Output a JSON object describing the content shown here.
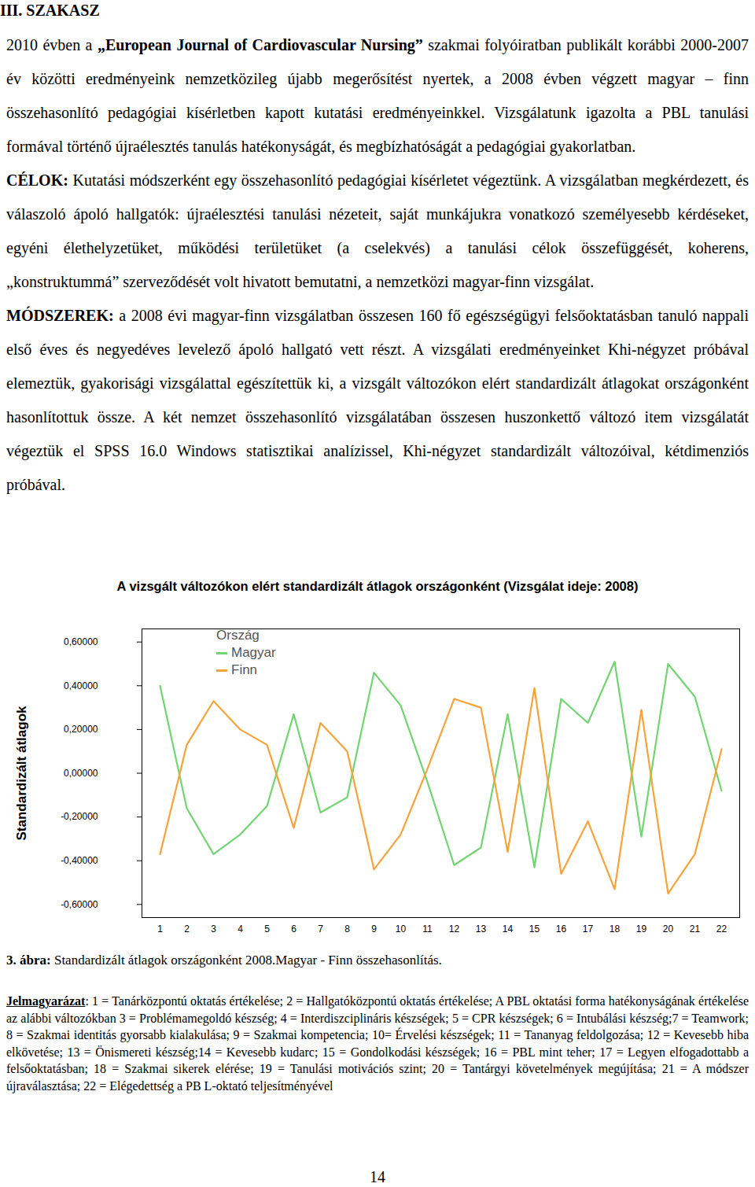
{
  "heading": "III. SZAKASZ",
  "paragraphs": [
    [
      "2010 évben a ",
      {
        "text": "„European Journal of Cardiovascular Nursing”",
        "style": "bold"
      },
      " szakmai folyóiratban publikált korábbi 2000-2007 év közötti eredményeink nemzetközileg újabb megerősítést nyertek, a 2008 évben végzett magyar – finn összehasonlító pedagógiai kísérletben kapott kutatási eredményeinkkel. Vizsgálatunk igazolta a PBL tanulási formával történő újraélesztés tanulás hatékonyságát, és megbízhatóságát a pedagógiai gyakorlatban."
    ],
    [
      {
        "text": "CÉLOK:",
        "style": "bold"
      },
      " Kutatási módszerként egy összehasonlító pedagógiai kísérletet végeztünk. A vizsgálatban megkérdezett, és válaszoló ápoló hallgatók: újraélesztési tanulási nézeteit, saját munkájukra vonatkozó személyesebb kérdéseket, egyéni élethelyzetüket, működési területüket (a cselekvés) a tanulási célok összefüggését, koherens, „konstruktummá” szerveződését volt hivatott bemutatni, a nemzetközi magyar-finn vizsgálat."
    ],
    [
      {
        "text": "MÓDSZEREK:",
        "style": "bold"
      },
      " a 2008 évi magyar-finn vizsgálatban összesen 160 fő egészségügyi felsőoktatásban tanuló nappali első éves és negyedéves levelező ápoló hallgató vett részt. A vizsgálati eredményeinket Khi-négyzet próbával elemeztük, gyakorisági vizsgálattal egészítettük ki, a vizsgált változókon elért standardizált átlagokat országonként hasonlítottuk össze. A két nemzet összehasonlító vizsgálatában összesen huszonkettő változó item vizsgálatát végeztük el SPSS 16.0 Windows statisztikai analízissel, Khi-négyzet standardizált változóival, kétdimenziós próbával."
    ]
  ],
  "chart_data": {
    "type": "line",
    "title": "A vizsgált változókon elért standardizált átlagok országonként (Vizsgálat ideje: 2008)",
    "y_label": "Standardizált átlagok",
    "categories": [
      "1",
      "2",
      "3",
      "4",
      "5",
      "6",
      "7",
      "8",
      "9",
      "10",
      "11",
      "12",
      "13",
      "14",
      "15",
      "16",
      "17",
      "18",
      "19",
      "20",
      "21",
      "22"
    ],
    "series": [
      {
        "name": "Magyar",
        "color": "#72d472",
        "values": [
          0.4,
          -0.16,
          -0.37,
          -0.28,
          -0.15,
          0.27,
          -0.18,
          -0.11,
          0.46,
          0.31,
          -0.04,
          -0.42,
          -0.34,
          0.27,
          -0.43,
          0.34,
          0.23,
          0.51,
          -0.29,
          0.5,
          0.35,
          -0.08
        ]
      },
      {
        "name": "Finn",
        "color": "#f5a33a",
        "values": [
          -0.37,
          0.13,
          0.33,
          0.2,
          0.13,
          -0.25,
          0.23,
          0.1,
          -0.44,
          -0.28,
          0.02,
          0.34,
          0.3,
          -0.36,
          0.39,
          -0.46,
          -0.22,
          -0.53,
          0.29,
          -0.55,
          -0.37,
          0.11
        ]
      }
    ],
    "ylim": [
      -0.66,
      0.66
    ],
    "yticks": [
      {
        "value": -0.6,
        "label": "-0,60000"
      },
      {
        "value": -0.4,
        "label": "-0,40000"
      },
      {
        "value": -0.2,
        "label": "-0,20000"
      },
      {
        "value": 0,
        "label": "0,00000"
      },
      {
        "value": 0.2,
        "label": "0,20000"
      },
      {
        "value": 0.4,
        "label": "0,40000"
      },
      {
        "value": 0.6,
        "label": "0,60000"
      }
    ],
    "legend": "upper left",
    "legend_title": "Ország",
    "grid": false
  },
  "caption": [
    {
      "text": "3. ábra:",
      "style": "bold"
    },
    " Standardizált átlagok országonként 2008.Magyar - Finn összehasonlítás."
  ],
  "key_note": [
    {
      "text": "Jelmagyarázat",
      "style": "bold underline"
    },
    ": 1 = Tanárközpontú oktatás értékelése; 2 = Hallgatóközpontú oktatás értékelése; A PBL oktatási forma hatékonyságának értékelése az alábbi változókban 3 = Problémamegoldó készség; 4 = Interdiszciplináris készségek; 5 = CPR készségek; 6 = Intubálási készség;7 = Teamwork; 8 = Szakmai identitás gyorsabb kialakulása; 9 = Szakmai kompetencia; 10= Érvelési készségek; 11 = Tananyag feldolgozása; 12 = Kevesebb hiba elkövetése; 13 = Önismereti készség;14 = Kevesebb kudarc; 15 = Gondolkodási készségek; 16 = PBL mint teher; 17 = Legyen elfogadottabb a felsőoktatásban; 18 = Szakmai sikerek elérése; 19 = Tanulási motivációs szint; 20 = Tantárgyi követelmények megújítása; 21 = A módszer újraválasztása; 22 = Elégedettség a PB L-oktató teljesítményével"
  ],
  "page_number": "14"
}
